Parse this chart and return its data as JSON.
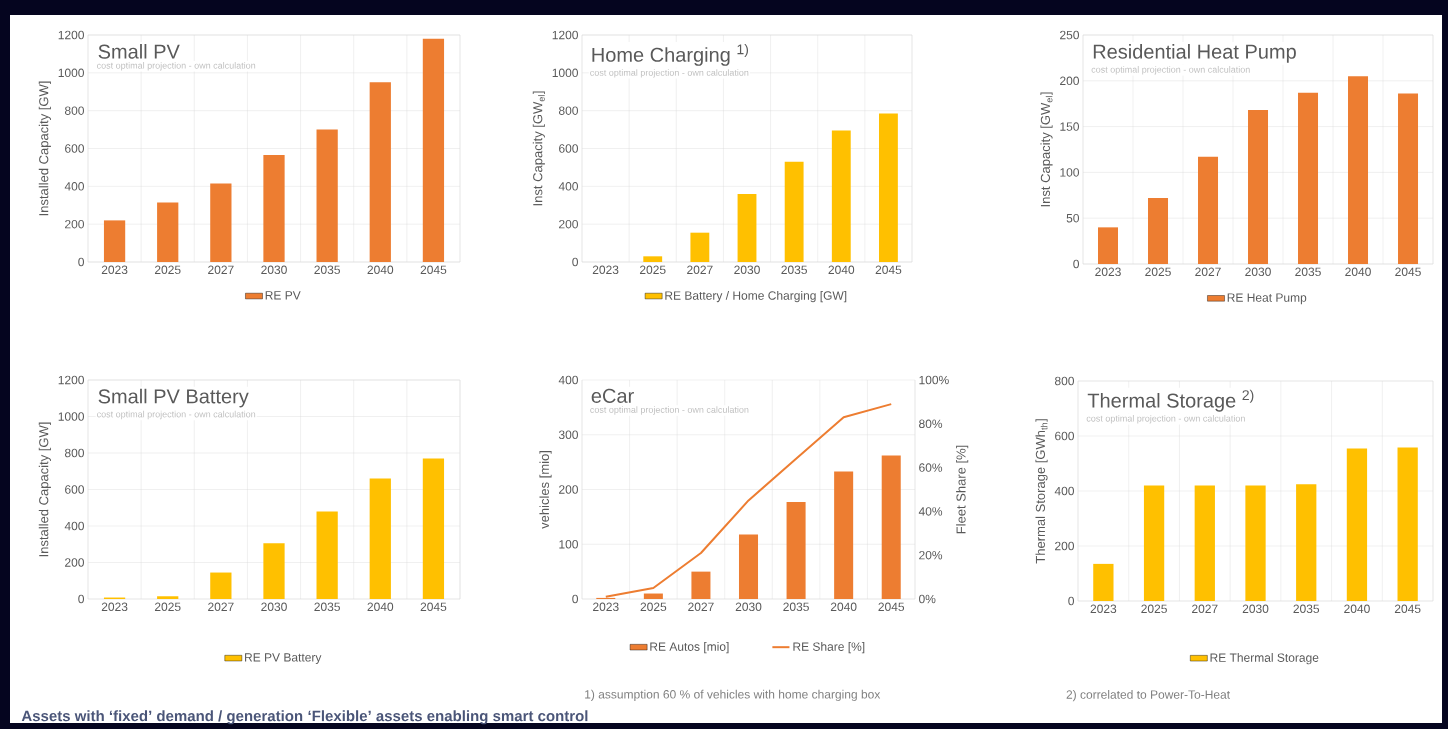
{
  "chart_data": [
    {
      "type": "bar",
      "title": "Small PV",
      "subtitle": "cost optimal projection - own calculation",
      "ylabel": "Installed Capacity [GW]",
      "categories": [
        "2023",
        "2025",
        "2027",
        "2030",
        "2035",
        "2040",
        "2045"
      ],
      "series": [
        {
          "name": "RE PV",
          "color": "#ed7d31",
          "values": [
            220,
            315,
            415,
            565,
            700,
            950,
            1180
          ]
        }
      ],
      "ylim": [
        0,
        1200
      ],
      "yticks": [
        0,
        200,
        400,
        600,
        800,
        1000,
        1200
      ],
      "grid": true,
      "legend": "bottom"
    },
    {
      "type": "bar",
      "title": "Home Charging $^{1)}$",
      "subtitle": "cost optimal projection - own calculation",
      "ylabel": "Inst Capacity  [GW$_{el}$]",
      "categories": [
        "2023",
        "2025",
        "2027",
        "2030",
        "2035",
        "2040",
        "2045"
      ],
      "series": [
        {
          "name": "RE Battery / Home Charging [GW]",
          "color": "#ffc000",
          "values": [
            0,
            30,
            155,
            360,
            530,
            695,
            785
          ]
        }
      ],
      "ylim": [
        0,
        1200
      ],
      "yticks": [
        0,
        200,
        400,
        600,
        800,
        1000,
        1200
      ],
      "grid": true,
      "legend": "bottom"
    },
    {
      "type": "bar",
      "title": "Residential Heat Pump",
      "subtitle": "cost optimal projection - own calculation",
      "ylabel": "Inst Capacity [GW$_{el}$]",
      "categories": [
        "2023",
        "2025",
        "2027",
        "2030",
        "2035",
        "2040",
        "2045"
      ],
      "series": [
        {
          "name": "RE Heat Pump",
          "color": "#ed7d31",
          "values": [
            40,
            72,
            117,
            168,
            187,
            205,
            186
          ]
        }
      ],
      "ylim": [
        0,
        250
      ],
      "yticks": [
        0,
        50,
        100,
        150,
        200,
        250
      ],
      "grid": true,
      "legend": "bottom"
    },
    {
      "type": "bar",
      "title": "Small PV Battery",
      "subtitle": "cost optimal projection - own calculation",
      "ylabel": "Installed Capacity [GW]",
      "categories": [
        "2023",
        "2025",
        "2027",
        "2030",
        "2035",
        "2040",
        "2045"
      ],
      "series": [
        {
          "name": "RE PV Battery",
          "color": "#ffc000",
          "values": [
            8,
            15,
            145,
            305,
            480,
            660,
            770
          ]
        }
      ],
      "ylim": [
        0,
        1200
      ],
      "yticks": [
        0,
        200,
        400,
        600,
        800,
        1000,
        1200
      ],
      "grid": true,
      "legend": "bottom",
      "annotations": [
        "Assets with ‘fixed’ demand / generation",
        "‘Flexible’ assets enabling smart control"
      ]
    },
    {
      "type": "bar",
      "title": "eCar",
      "subtitle": "cost optimal projection - own calculation",
      "ylabel": "vehicles [mio]",
      "y2label": "Fleet Share [%]",
      "categories": [
        "2023",
        "2025",
        "2027",
        "2030",
        "2035",
        "2040",
        "2045"
      ],
      "series": [
        {
          "name": "RE Autos [mio]",
          "type": "bar",
          "color": "#ed7d31",
          "values": [
            2,
            10,
            50,
            118,
            177,
            233,
            262
          ]
        },
        {
          "name": "RE Share [%]",
          "type": "line",
          "axis": "y2",
          "color": "#ed7d31",
          "values": [
            1,
            5,
            21,
            45,
            64,
            83,
            89
          ]
        }
      ],
      "ylim": [
        0,
        400
      ],
      "yticks": [
        0,
        100,
        200,
        300,
        400
      ],
      "y2lim": [
        0,
        100
      ],
      "y2ticks": [
        {
          "value": 0,
          "label": "0%"
        },
        {
          "value": 20,
          "label": "20%"
        },
        {
          "value": 40,
          "label": "40%"
        },
        {
          "value": 60,
          "label": "60%"
        },
        {
          "value": 80,
          "label": "80%"
        },
        {
          "value": 100,
          "label": "100%"
        }
      ],
      "grid": true,
      "legend": "bottom",
      "annotations": [
        "1) assumption 60 % of vehicles with home charging box"
      ]
    },
    {
      "type": "bar",
      "title": "Thermal Storage $^{2)}$",
      "subtitle": "cost optimal projection - own calculation",
      "ylabel": "Thermal Storage  [GWh$_{th}$]",
      "categories": [
        "2023",
        "2025",
        "2027",
        "2030",
        "2035",
        "2040",
        "2045"
      ],
      "series": [
        {
          "name": "RE Thermal Storage",
          "color": "#ffc000",
          "values": [
            135,
            420,
            420,
            420,
            425,
            555,
            558
          ]
        }
      ],
      "ylim": [
        0,
        800
      ],
      "yticks": [
        0,
        200,
        400,
        600,
        800
      ],
      "grid": true,
      "legend": "bottom",
      "annotations": [
        "2) correlated to Power-To-Heat"
      ]
    }
  ]
}
